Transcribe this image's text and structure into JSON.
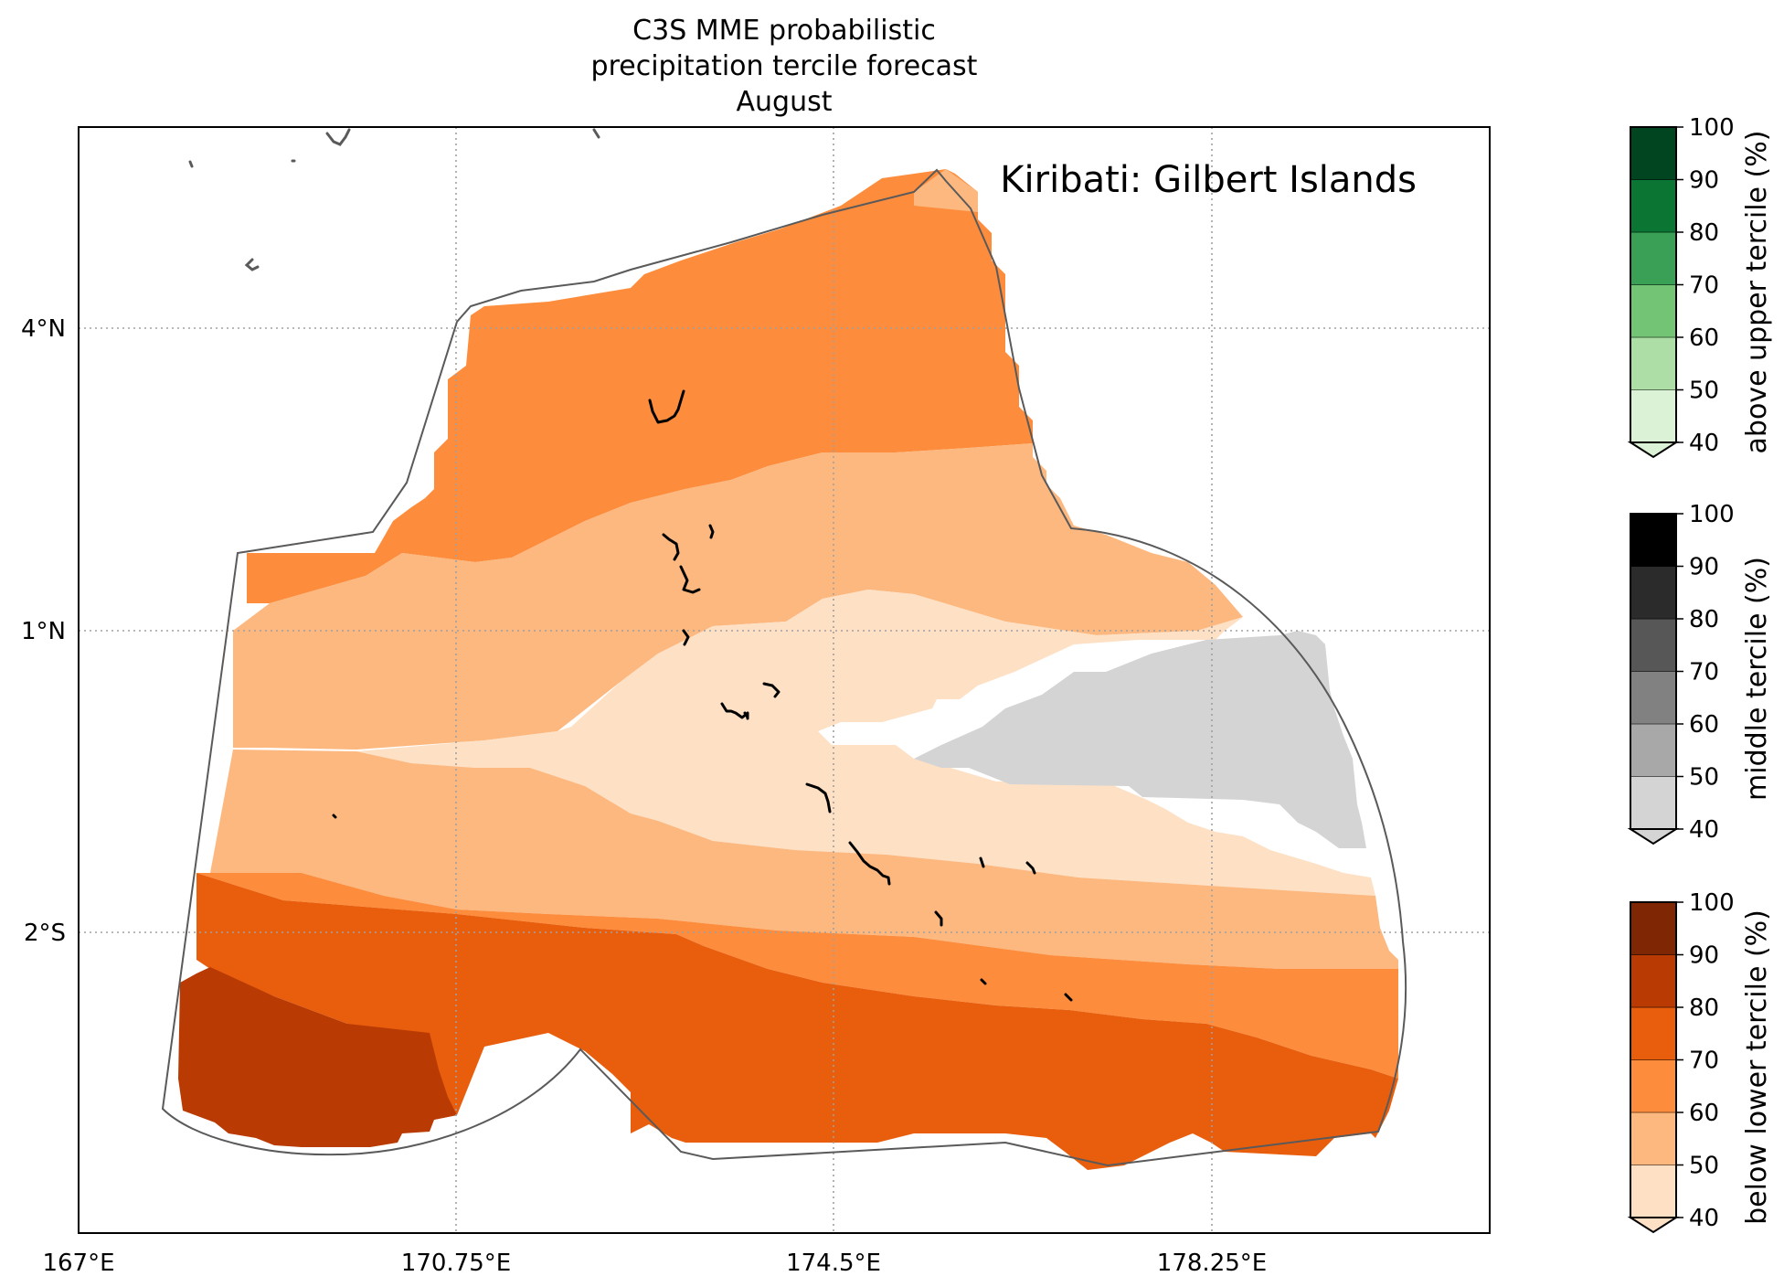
{
  "title": {
    "line1": "C3S MME probabilistic",
    "line2": "precipitation tercile forecast",
    "line3": "August"
  },
  "region_label": "Kiribati: Gilbert Islands",
  "axes": {
    "x_ticks": [
      "167°E",
      "170.75°E",
      "174.5°E",
      "178.25°E"
    ],
    "y_ticks": [
      "4°N",
      "1°N",
      "2°S"
    ]
  },
  "colors": {
    "below": [
      "#fee0c4",
      "#fdb87f",
      "#fd8c3c",
      "#e95e0d",
      "#b93b03",
      "#7f2704"
    ],
    "middle": [
      "#d4d4d4",
      "#a8a8a8",
      "#818181",
      "#575757",
      "#2b2b2b",
      "#000000"
    ],
    "above": [
      "#dbf2d6",
      "#addea6",
      "#74c476",
      "#39a055",
      "#0b7533",
      "#004520"
    ]
  },
  "colorbars": [
    {
      "key": "above",
      "label": "above upper tercile (%)",
      "ticks": [
        "40",
        "50",
        "60",
        "70",
        "80",
        "90",
        "100"
      ]
    },
    {
      "key": "middle",
      "label": "middle tercile (%)",
      "ticks": [
        "40",
        "50",
        "60",
        "70",
        "80",
        "90",
        "100"
      ]
    },
    {
      "key": "below",
      "label": "below lower tercile (%)",
      "ticks": [
        "40",
        "50",
        "60",
        "70",
        "80",
        "90",
        "100"
      ]
    }
  ]
}
